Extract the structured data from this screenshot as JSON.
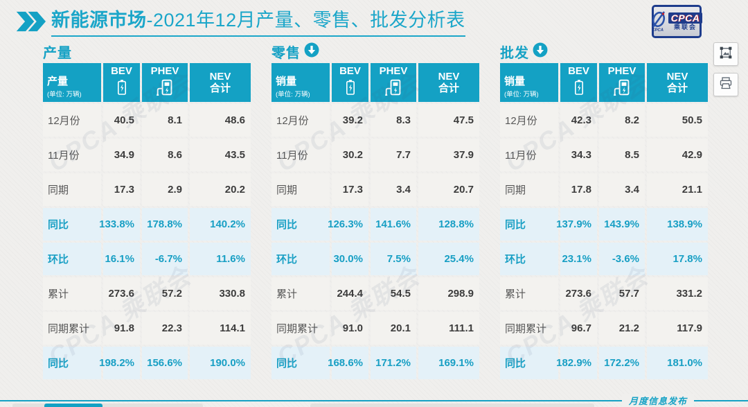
{
  "header": {
    "title_bold": "新能源市场",
    "title_rest": "-2021年12月产量、零售、批发分析表",
    "logo": {
      "acronym": "CPCA",
      "name_cn": "乘联会"
    }
  },
  "icons": {
    "chevron": "double-chevron-right",
    "section_arrow": "circle-down-arrow",
    "bev": "battery",
    "phev": "charging-station",
    "export_image": "image-frame",
    "print": "printer"
  },
  "watermark": {
    "text": "CPCA 乘联会"
  },
  "tables": [
    {
      "section_label": "产量",
      "has_arrow": false,
      "col_header": {
        "label": "产量",
        "unit": "(单位: 万辆)"
      },
      "columns": {
        "c1": "BEV",
        "c2": "PHEV",
        "c3": "NEV",
        "c3b": "合计"
      },
      "rows": [
        {
          "label": "12月份",
          "type": "normal",
          "values": [
            "40.5",
            "8.1",
            "48.6"
          ]
        },
        {
          "label": "11月份",
          "type": "normal",
          "values": [
            "34.9",
            "8.6",
            "43.5"
          ]
        },
        {
          "label": "同期",
          "type": "normal",
          "values": [
            "17.3",
            "2.9",
            "20.2"
          ]
        },
        {
          "label": "同比",
          "type": "highlight",
          "values": [
            "133.8%",
            "178.8%",
            "140.2%"
          ]
        },
        {
          "label": "环比",
          "type": "highlight",
          "values": [
            "16.1%",
            "-6.7%",
            "11.6%"
          ]
        },
        {
          "label": "累计",
          "type": "normal",
          "values": [
            "273.6",
            "57.2",
            "330.8"
          ]
        },
        {
          "label": "同期累计",
          "type": "normal",
          "values": [
            "91.8",
            "22.3",
            "114.1"
          ]
        },
        {
          "label": "同比",
          "type": "highlight",
          "values": [
            "198.2%",
            "156.6%",
            "190.0%"
          ]
        }
      ]
    },
    {
      "section_label": "零售",
      "has_arrow": true,
      "col_header": {
        "label": "销量",
        "unit": "(单位: 万辆)"
      },
      "columns": {
        "c1": "BEV",
        "c2": "PHEV",
        "c3": "NEV",
        "c3b": "合计"
      },
      "rows": [
        {
          "label": "12月份",
          "type": "normal",
          "values": [
            "39.2",
            "8.3",
            "47.5"
          ]
        },
        {
          "label": "11月份",
          "type": "normal",
          "values": [
            "30.2",
            "7.7",
            "37.9"
          ]
        },
        {
          "label": "同期",
          "type": "normal",
          "values": [
            "17.3",
            "3.4",
            "20.7"
          ]
        },
        {
          "label": "同比",
          "type": "highlight",
          "values": [
            "126.3%",
            "141.6%",
            "128.8%"
          ]
        },
        {
          "label": "环比",
          "type": "highlight",
          "values": [
            "30.0%",
            "7.5%",
            "25.4%"
          ]
        },
        {
          "label": "累计",
          "type": "normal",
          "values": [
            "244.4",
            "54.5",
            "298.9"
          ]
        },
        {
          "label": "同期累计",
          "type": "normal",
          "values": [
            "91.0",
            "20.1",
            "111.1"
          ]
        },
        {
          "label": "同比",
          "type": "highlight",
          "values": [
            "168.6%",
            "171.2%",
            "169.1%"
          ]
        }
      ]
    },
    {
      "section_label": "批发",
      "has_arrow": true,
      "col_header": {
        "label": "销量",
        "unit": "(单位: 万辆)"
      },
      "columns": {
        "c1": "BEV",
        "c2": "PHEV",
        "c3": "NEV",
        "c3b": "合计"
      },
      "rows": [
        {
          "label": "12月份",
          "type": "normal",
          "values": [
            "42.3",
            "8.2",
            "50.5"
          ]
        },
        {
          "label": "11月份",
          "type": "normal",
          "values": [
            "34.3",
            "8.5",
            "42.9"
          ]
        },
        {
          "label": "同期",
          "type": "normal",
          "values": [
            "17.8",
            "3.4",
            "21.1"
          ]
        },
        {
          "label": "同比",
          "type": "highlight",
          "values": [
            "137.9%",
            "143.9%",
            "138.9%"
          ]
        },
        {
          "label": "环比",
          "type": "highlight",
          "values": [
            "23.1%",
            "-3.6%",
            "17.8%"
          ]
        },
        {
          "label": "累计",
          "type": "normal",
          "values": [
            "273.6",
            "57.7",
            "331.2"
          ]
        },
        {
          "label": "同期累计",
          "type": "normal",
          "values": [
            "96.7",
            "21.2",
            "117.9"
          ]
        },
        {
          "label": "同比",
          "type": "highlight",
          "values": [
            "182.9%",
            "172.2%",
            "181.0%"
          ]
        }
      ]
    }
  ],
  "footer": {
    "publish_label": "月度信息发布"
  },
  "colors": {
    "accent": "#14a1c4",
    "highlight_bg": "#e4f1f8",
    "highlight_text": "#189fc4",
    "logo_navy": "#1e3c8c",
    "logo_red": "#c8232c"
  }
}
